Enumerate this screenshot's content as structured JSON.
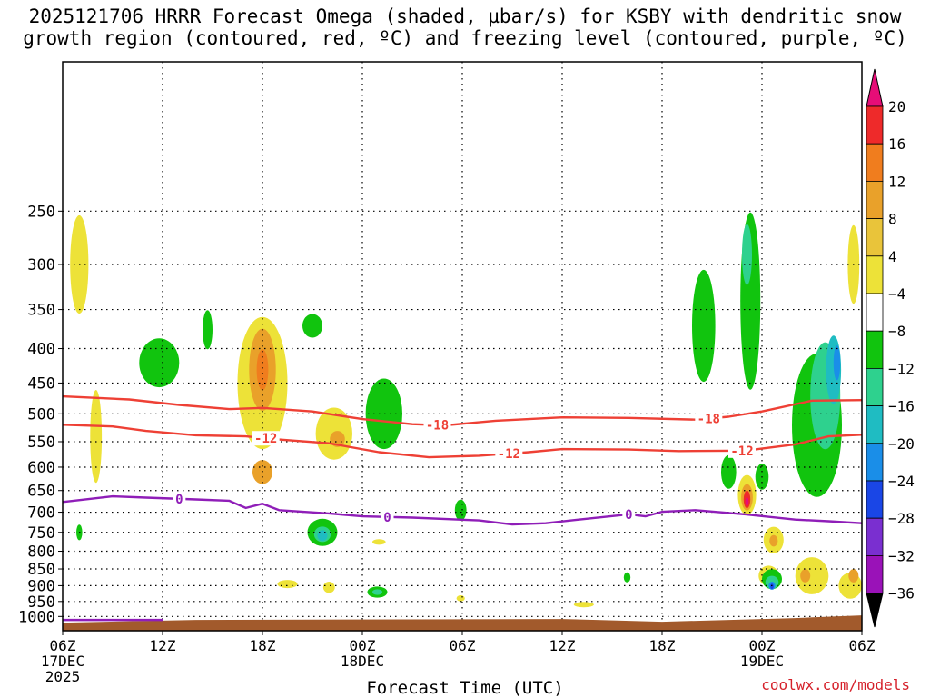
{
  "title": {
    "line1": "2025121706 HRRR Forecast Omega (shaded, µbar/s) for KSBY with dendritic snow",
    "line2": "growth region (contoured, red, ºC) and freezing level (contoured, purple, ºC)"
  },
  "credit": "coolwx.com/models",
  "chart_data": {
    "type": "heatmap",
    "xlabel": "Forecast Time (UTC)",
    "x_ticks": [
      {
        "h": 0,
        "lines": [
          "06Z",
          "17DEC",
          "2025"
        ]
      },
      {
        "h": 6,
        "lines": [
          "12Z"
        ]
      },
      {
        "h": 12,
        "lines": [
          "18Z"
        ]
      },
      {
        "h": 18,
        "lines": [
          "00Z",
          "18DEC"
        ]
      },
      {
        "h": 24,
        "lines": [
          "06Z"
        ]
      },
      {
        "h": 30,
        "lines": [
          "12Z"
        ]
      },
      {
        "h": 36,
        "lines": [
          "18Z"
        ]
      },
      {
        "h": 42,
        "lines": [
          "00Z",
          "19DEC"
        ]
      },
      {
        "h": 48,
        "lines": [
          "06Z"
        ]
      }
    ],
    "xlim": [
      0,
      48
    ],
    "y_scale": "log-pressure (hPa)",
    "ylim": [
      1050,
      150
    ],
    "y_ticks": [
      250,
      300,
      350,
      400,
      450,
      500,
      550,
      600,
      650,
      700,
      750,
      800,
      850,
      900,
      950,
      1000
    ],
    "grid": true,
    "colorbar": {
      "levels": [
        20,
        16,
        12,
        8,
        4,
        -4,
        -8,
        -12,
        -16,
        -20,
        -24,
        -28,
        -32,
        -36
      ],
      "colors": [
        "#e60d77",
        "#ee2a2a",
        "#f07d1e",
        "#e9a12a",
        "#e9c43a",
        "#ede238",
        "#ffffff",
        "#11c40e",
        "#2ed18e",
        "#1fbcc2",
        "#1a8ee8",
        "#1a46e6",
        "#7a2fd0",
        "#9a12b8",
        "#a0a0a0",
        "#000000"
      ]
    },
    "contours": [
      {
        "kind": "dgz",
        "label": "-18",
        "color": "#ee4035",
        "points": [
          [
            0,
            471
          ],
          [
            4,
            476
          ],
          [
            7,
            485
          ],
          [
            10,
            492
          ],
          [
            12,
            490
          ],
          [
            15,
            496
          ],
          [
            18,
            509
          ],
          [
            21,
            518
          ],
          [
            23,
            520
          ],
          [
            26,
            512
          ],
          [
            30,
            506
          ],
          [
            34,
            507
          ],
          [
            38,
            510
          ],
          [
            40,
            505
          ],
          [
            42,
            496
          ],
          [
            45,
            478
          ],
          [
            48,
            477
          ]
        ],
        "label_at": [
          22.5,
          38.8
        ]
      },
      {
        "kind": "dgz",
        "label": "-12",
        "color": "#ee4035",
        "points": [
          [
            0,
            519
          ],
          [
            3,
            522
          ],
          [
            5,
            530
          ],
          [
            8,
            538
          ],
          [
            11,
            540
          ],
          [
            13,
            546
          ],
          [
            16,
            553
          ],
          [
            19,
            570
          ],
          [
            22,
            580
          ],
          [
            25,
            577
          ],
          [
            28,
            570
          ],
          [
            30,
            564
          ],
          [
            34,
            565
          ],
          [
            37,
            568
          ],
          [
            41,
            567
          ],
          [
            44,
            555
          ],
          [
            46,
            540
          ],
          [
            48,
            537
          ]
        ],
        "label_at": [
          12.2,
          26.8,
          40.8
        ]
      },
      {
        "kind": "freezing",
        "label": "0",
        "color": "#8f1eb8",
        "points": [
          [
            0,
            676
          ],
          [
            3,
            663
          ],
          [
            5,
            666
          ],
          [
            8,
            670
          ],
          [
            10,
            673
          ],
          [
            11,
            690
          ],
          [
            12,
            680
          ],
          [
            13,
            695
          ],
          [
            16,
            703
          ],
          [
            18,
            710
          ],
          [
            21,
            713
          ],
          [
            25,
            720
          ],
          [
            27,
            730
          ],
          [
            29,
            727
          ],
          [
            31,
            718
          ],
          [
            34,
            705
          ],
          [
            35,
            710
          ],
          [
            36,
            699
          ],
          [
            38,
            695
          ],
          [
            41,
            705
          ],
          [
            44,
            718
          ],
          [
            46,
            722
          ],
          [
            48,
            727
          ]
        ],
        "label_at": [
          7.0,
          19.5,
          34.0
        ]
      }
    ],
    "freezing_surface": {
      "color": "#8f1eb8",
      "from_h": 0,
      "to_h": 6,
      "p": 1012
    },
    "terrain": {
      "color": "#a25a2c",
      "p": 1015
    },
    "omega_blobs": [
      {
        "h": 1.0,
        "p": 300,
        "dh": 0.55,
        "dp": 100,
        "level": 4
      },
      {
        "h": 2.0,
        "p": 540,
        "dh": 0.35,
        "dp": 170,
        "level": 4
      },
      {
        "h": 1.0,
        "p": 750,
        "dh": 0.18,
        "dp": 40,
        "level": -4
      },
      {
        "h": 12.0,
        "p": 450,
        "dh": 1.5,
        "dp": 200,
        "level": 4
      },
      {
        "h": 12.0,
        "p": 430,
        "dh": 0.8,
        "dp": 120,
        "level": 8
      },
      {
        "h": 12.0,
        "p": 610,
        "dh": 0.6,
        "dp": 50,
        "level": 8
      },
      {
        "h": 12.0,
        "p": 430,
        "dh": 0.35,
        "dp": 60,
        "level": 12
      },
      {
        "h": 16.3,
        "p": 535,
        "dh": 1.1,
        "dp": 95,
        "level": 4
      },
      {
        "h": 16.5,
        "p": 545,
        "dh": 0.45,
        "dp": 30,
        "level": 8
      },
      {
        "h": 5.8,
        "p": 420,
        "dh": 1.2,
        "dp": 70,
        "level": -4
      },
      {
        "h": 8.7,
        "p": 375,
        "dh": 0.3,
        "dp": 50,
        "level": -4
      },
      {
        "h": 15.0,
        "p": 370,
        "dh": 0.6,
        "dp": 30,
        "level": -4
      },
      {
        "h": 19.3,
        "p": 500,
        "dh": 1.1,
        "dp": 120,
        "level": -4
      },
      {
        "h": 15.6,
        "p": 750,
        "dh": 0.9,
        "dp": 70,
        "level": -4
      },
      {
        "h": 15.6,
        "p": 755,
        "dh": 0.5,
        "dp": 40,
        "level": -8
      },
      {
        "h": 15.6,
        "p": 758,
        "dh": 0.3,
        "dp": 28,
        "level": -12
      },
      {
        "h": 19.0,
        "p": 775,
        "dh": 0.4,
        "dp": 15,
        "level": 4
      },
      {
        "h": 13.5,
        "p": 895,
        "dh": 0.6,
        "dp": 25,
        "level": 4
      },
      {
        "h": 16.0,
        "p": 905,
        "dh": 0.35,
        "dp": 35,
        "level": 4
      },
      {
        "h": 18.9,
        "p": 920,
        "dh": 0.6,
        "dp": 35,
        "level": -4
      },
      {
        "h": 18.9,
        "p": 920,
        "dh": 0.3,
        "dp": 18,
        "level": -8
      },
      {
        "h": 23.9,
        "p": 695,
        "dh": 0.35,
        "dp": 50,
        "level": -4
      },
      {
        "h": 23.9,
        "p": 940,
        "dh": 0.25,
        "dp": 20,
        "level": 4
      },
      {
        "h": 33.9,
        "p": 875,
        "dh": 0.2,
        "dp": 30,
        "level": -4
      },
      {
        "h": 31.3,
        "p": 960,
        "dh": 0.6,
        "dp": 12,
        "level": 4
      },
      {
        "h": 38.5,
        "p": 370,
        "dh": 0.7,
        "dp": 140,
        "level": -4
      },
      {
        "h": 41.3,
        "p": 340,
        "dh": 0.6,
        "dp": 200,
        "level": -4
      },
      {
        "h": 41.1,
        "p": 290,
        "dh": 0.3,
        "dp": 60,
        "level": -8
      },
      {
        "h": 40.0,
        "p": 610,
        "dh": 0.45,
        "dp": 70,
        "level": -4
      },
      {
        "h": 42.0,
        "p": 620,
        "dh": 0.4,
        "dp": 55,
        "level": -4
      },
      {
        "h": 41.1,
        "p": 660,
        "dh": 0.55,
        "dp": 90,
        "level": 4
      },
      {
        "h": 41.1,
        "p": 665,
        "dh": 0.35,
        "dp": 60,
        "level": 8
      },
      {
        "h": 41.1,
        "p": 670,
        "dh": 0.2,
        "dp": 40,
        "level": 16
      },
      {
        "h": 41.1,
        "p": 675,
        "dh": 0.1,
        "dp": 20,
        "level": 20
      },
      {
        "h": 42.7,
        "p": 770,
        "dh": 0.6,
        "dp": 70,
        "level": 4
      },
      {
        "h": 42.7,
        "p": 772,
        "dh": 0.25,
        "dp": 30,
        "level": 8
      },
      {
        "h": 45.3,
        "p": 520,
        "dh": 1.5,
        "dp": 250,
        "level": -4
      },
      {
        "h": 45.8,
        "p": 470,
        "dh": 0.9,
        "dp": 170,
        "level": -8
      },
      {
        "h": 46.3,
        "p": 430,
        "dh": 0.45,
        "dp": 100,
        "level": -12
      },
      {
        "h": 46.5,
        "p": 420,
        "dh": 0.2,
        "dp": 50,
        "level": -16
      },
      {
        "h": 47.5,
        "p": 300,
        "dh": 0.35,
        "dp": 80,
        "level": 4
      },
      {
        "h": 42.4,
        "p": 870,
        "dh": 0.6,
        "dp": 60,
        "level": 4
      },
      {
        "h": 42.6,
        "p": 880,
        "dh": 0.6,
        "dp": 60,
        "level": -4
      },
      {
        "h": 42.6,
        "p": 890,
        "dh": 0.4,
        "dp": 40,
        "level": -8
      },
      {
        "h": 42.6,
        "p": 900,
        "dh": 0.2,
        "dp": 25,
        "level": -16
      },
      {
        "h": 42.6,
        "p": 902,
        "dh": 0.1,
        "dp": 12,
        "level": -24
      },
      {
        "h": 45.0,
        "p": 870,
        "dh": 1.0,
        "dp": 110,
        "level": 4
      },
      {
        "h": 44.6,
        "p": 870,
        "dh": 0.3,
        "dp": 40,
        "level": 8
      },
      {
        "h": 47.3,
        "p": 900,
        "dh": 0.7,
        "dp": 80,
        "level": 4
      },
      {
        "h": 47.5,
        "p": 870,
        "dh": 0.3,
        "dp": 40,
        "level": 8
      }
    ]
  }
}
